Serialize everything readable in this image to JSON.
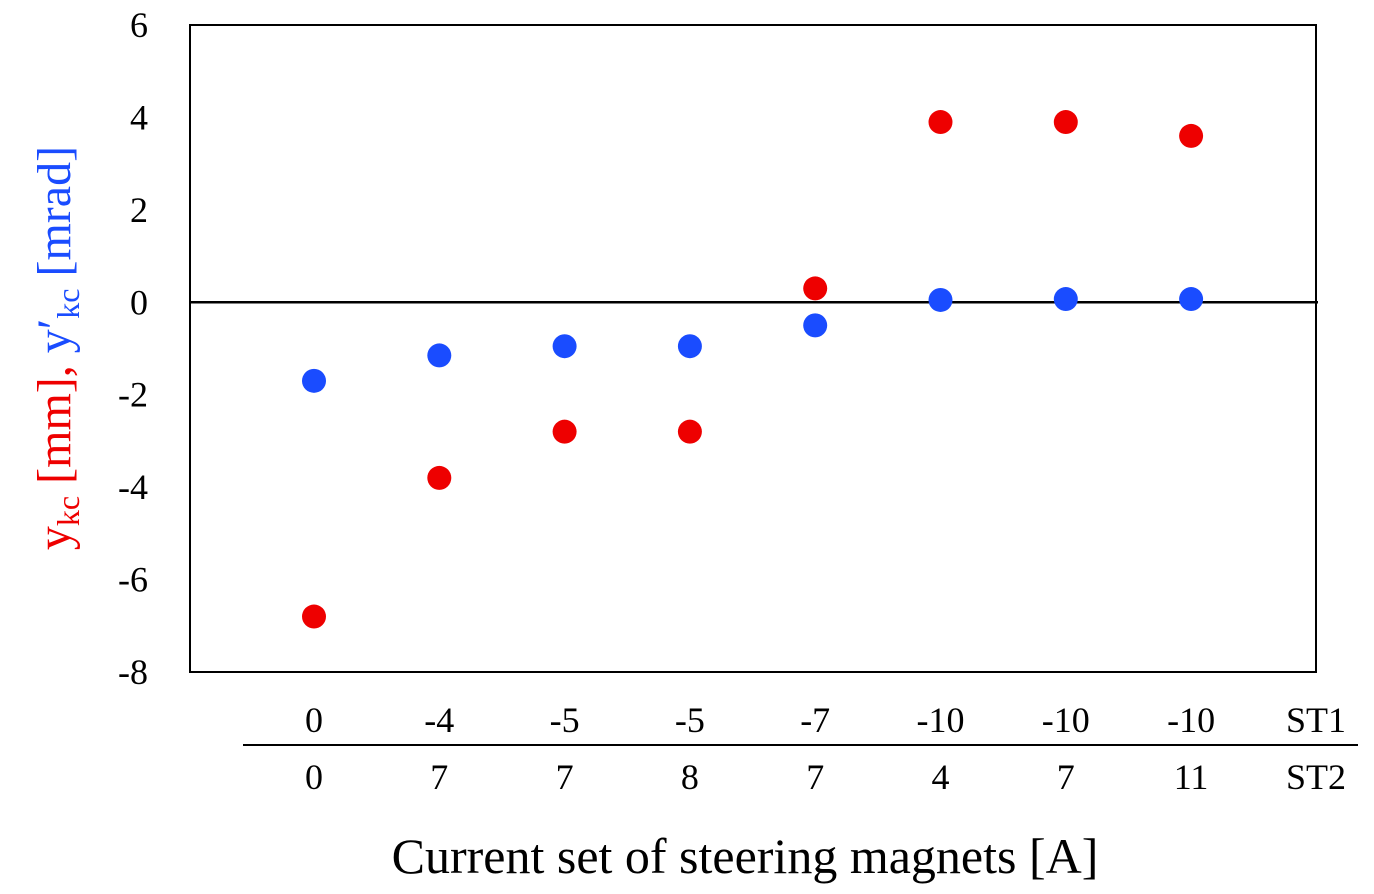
{
  "chart_data": {
    "type": "scatter",
    "categories": [
      {
        "st1": "0",
        "st2": "0"
      },
      {
        "st1": "-4",
        "st2": "7"
      },
      {
        "st1": "-5",
        "st2": "7"
      },
      {
        "st1": "-5",
        "st2": "8"
      },
      {
        "st1": "-7",
        "st2": "7"
      },
      {
        "st1": "-10",
        "st2": "4"
      },
      {
        "st1": "-10",
        "st2": "7"
      },
      {
        "st1": "-10",
        "st2": "11"
      }
    ],
    "row_labels": [
      "ST1",
      "ST2"
    ],
    "series": [
      {
        "color": "#ee0000",
        "values": [
          -6.8,
          -3.8,
          -2.8,
          -2.8,
          0.3,
          3.9,
          3.9,
          3.6
        ]
      },
      {
        "color": "#1a4cff",
        "values": [
          -1.7,
          -1.15,
          -0.95,
          -0.95,
          -0.5,
          0.05,
          0.07,
          0.07
        ]
      }
    ],
    "ylim": [
      -8,
      6
    ],
    "yticks": [
      "6",
      "4",
      "2",
      "0",
      "-2",
      "-4",
      "-6",
      "-8"
    ],
    "xlabel": "Current set of steering magnets [A]",
    "ylabel": {
      "part1": "y",
      "part1_sub": "kc",
      "part1_unit": " [mm], ",
      "part2": "y′",
      "part2_sub": "kc",
      "part2_unit": " [mrad]"
    },
    "zero_line": true,
    "grid": false
  }
}
